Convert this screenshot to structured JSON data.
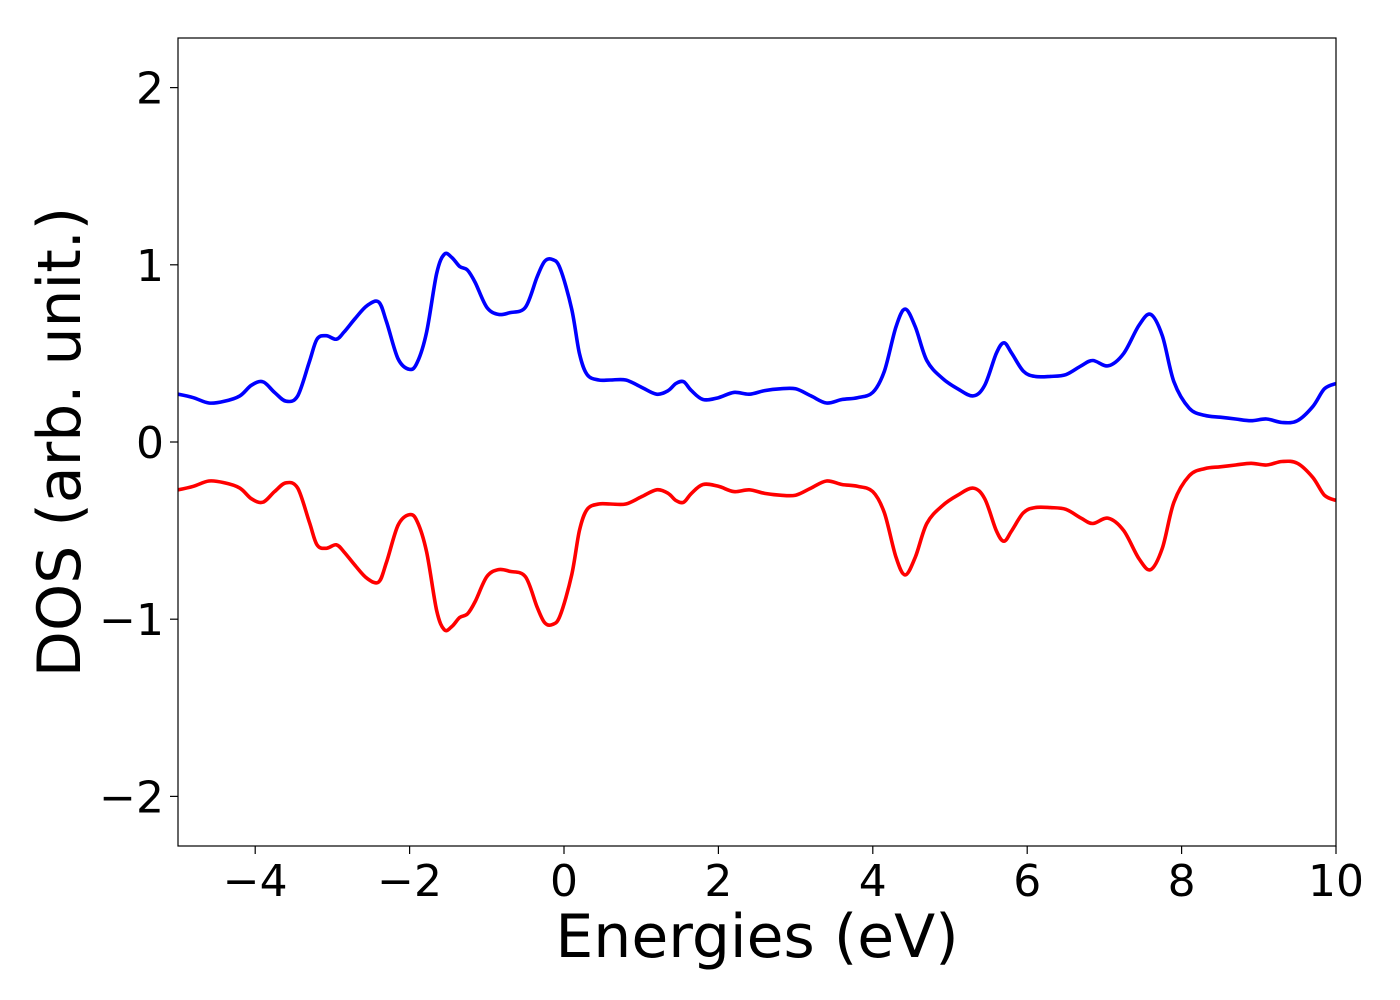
{
  "chart_data": {
    "type": "line",
    "title": "",
    "xlabel": "Energies (eV)",
    "ylabel": "DOS (arb. unit.)",
    "xlim": [
      -5,
      10
    ],
    "ylim": [
      -2.28,
      2.28
    ],
    "xticks": [
      -4,
      -2,
      0,
      2,
      4,
      6,
      8,
      10
    ],
    "xtick_labels": [
      "−4",
      "−2",
      "0",
      "2",
      "4",
      "6",
      "8",
      "10"
    ],
    "yticks": [
      -2,
      -1,
      0,
      1,
      2
    ],
    "ytick_labels": [
      "−2",
      "−1",
      "0",
      "1",
      "2"
    ],
    "grid": false,
    "legend": "none",
    "series": [
      {
        "color": "#0000ff",
        "x": [
          -5.0,
          -4.8,
          -4.6,
          -4.4,
          -4.2,
          -4.05,
          -3.9,
          -3.75,
          -3.6,
          -3.45,
          -3.3,
          -3.2,
          -3.08,
          -2.95,
          -2.85,
          -2.7,
          -2.55,
          -2.4,
          -2.3,
          -2.15,
          -2.0,
          -1.9,
          -1.78,
          -1.65,
          -1.55,
          -1.45,
          -1.35,
          -1.25,
          -1.15,
          -1.0,
          -0.85,
          -0.7,
          -0.5,
          -0.35,
          -0.25,
          -0.15,
          -0.05,
          0.1,
          0.2,
          0.3,
          0.45,
          0.6,
          0.8,
          1.0,
          1.2,
          1.35,
          1.45,
          1.55,
          1.65,
          1.8,
          2.0,
          2.2,
          2.4,
          2.6,
          2.8,
          3.0,
          3.2,
          3.4,
          3.6,
          3.8,
          4.0,
          4.15,
          4.3,
          4.42,
          4.55,
          4.7,
          4.9,
          5.1,
          5.3,
          5.45,
          5.6,
          5.7,
          5.8,
          5.95,
          6.1,
          6.3,
          6.5,
          6.7,
          6.85,
          7.05,
          7.25,
          7.45,
          7.6,
          7.75,
          7.9,
          8.1,
          8.3,
          8.5,
          8.7,
          8.9,
          9.1,
          9.3,
          9.5,
          9.7,
          9.85,
          10.0
        ],
        "y": [
          0.27,
          0.25,
          0.22,
          0.23,
          0.26,
          0.32,
          0.34,
          0.28,
          0.23,
          0.26,
          0.45,
          0.58,
          0.6,
          0.58,
          0.62,
          0.7,
          0.77,
          0.79,
          0.68,
          0.47,
          0.41,
          0.45,
          0.62,
          0.95,
          1.06,
          1.04,
          0.99,
          0.97,
          0.9,
          0.76,
          0.72,
          0.73,
          0.76,
          0.93,
          1.02,
          1.03,
          0.98,
          0.75,
          0.5,
          0.38,
          0.35,
          0.35,
          0.35,
          0.31,
          0.27,
          0.29,
          0.33,
          0.34,
          0.29,
          0.24,
          0.25,
          0.28,
          0.27,
          0.29,
          0.3,
          0.3,
          0.26,
          0.22,
          0.24,
          0.25,
          0.28,
          0.4,
          0.65,
          0.75,
          0.65,
          0.46,
          0.36,
          0.3,
          0.26,
          0.32,
          0.5,
          0.56,
          0.5,
          0.4,
          0.37,
          0.37,
          0.38,
          0.43,
          0.46,
          0.43,
          0.5,
          0.66,
          0.72,
          0.6,
          0.34,
          0.19,
          0.15,
          0.14,
          0.13,
          0.12,
          0.13,
          0.11,
          0.12,
          0.2,
          0.3,
          0.33
        ]
      },
      {
        "color": "#ff0000",
        "x": [
          -5.0,
          -4.8,
          -4.6,
          -4.4,
          -4.2,
          -4.05,
          -3.9,
          -3.75,
          -3.6,
          -3.45,
          -3.3,
          -3.2,
          -3.08,
          -2.95,
          -2.85,
          -2.7,
          -2.55,
          -2.4,
          -2.3,
          -2.15,
          -2.0,
          -1.9,
          -1.78,
          -1.65,
          -1.55,
          -1.45,
          -1.35,
          -1.25,
          -1.15,
          -1.0,
          -0.85,
          -0.7,
          -0.5,
          -0.35,
          -0.25,
          -0.15,
          -0.05,
          0.1,
          0.2,
          0.3,
          0.45,
          0.6,
          0.8,
          1.0,
          1.2,
          1.35,
          1.45,
          1.55,
          1.65,
          1.8,
          2.0,
          2.2,
          2.4,
          2.6,
          2.8,
          3.0,
          3.2,
          3.4,
          3.6,
          3.8,
          4.0,
          4.15,
          4.3,
          4.42,
          4.55,
          4.7,
          4.9,
          5.1,
          5.3,
          5.45,
          5.6,
          5.7,
          5.8,
          5.95,
          6.1,
          6.3,
          6.5,
          6.7,
          6.85,
          7.05,
          7.25,
          7.45,
          7.6,
          7.75,
          7.9,
          8.1,
          8.3,
          8.5,
          8.7,
          8.9,
          9.1,
          9.3,
          9.5,
          9.7,
          9.85,
          10.0
        ],
        "y": [
          -0.27,
          -0.25,
          -0.22,
          -0.23,
          -0.26,
          -0.32,
          -0.34,
          -0.28,
          -0.23,
          -0.26,
          -0.45,
          -0.58,
          -0.6,
          -0.58,
          -0.62,
          -0.7,
          -0.77,
          -0.79,
          -0.68,
          -0.47,
          -0.41,
          -0.45,
          -0.62,
          -0.95,
          -1.06,
          -1.04,
          -0.99,
          -0.97,
          -0.9,
          -0.76,
          -0.72,
          -0.73,
          -0.76,
          -0.93,
          -1.02,
          -1.03,
          -0.98,
          -0.75,
          -0.5,
          -0.38,
          -0.35,
          -0.35,
          -0.35,
          -0.31,
          -0.27,
          -0.29,
          -0.33,
          -0.34,
          -0.29,
          -0.24,
          -0.25,
          -0.28,
          -0.27,
          -0.29,
          -0.3,
          -0.3,
          -0.26,
          -0.22,
          -0.24,
          -0.25,
          -0.28,
          -0.4,
          -0.65,
          -0.75,
          -0.65,
          -0.46,
          -0.36,
          -0.3,
          -0.26,
          -0.32,
          -0.5,
          -0.56,
          -0.5,
          -0.4,
          -0.37,
          -0.37,
          -0.38,
          -0.43,
          -0.46,
          -0.43,
          -0.5,
          -0.66,
          -0.72,
          -0.6,
          -0.34,
          -0.19,
          -0.15,
          -0.14,
          -0.13,
          -0.12,
          -0.13,
          -0.11,
          -0.12,
          -0.2,
          -0.3,
          -0.33
        ]
      }
    ]
  }
}
